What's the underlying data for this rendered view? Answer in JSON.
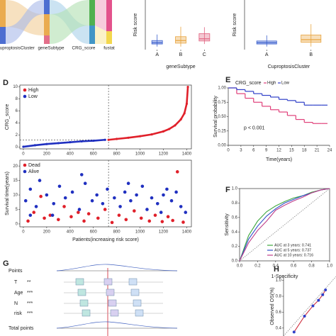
{
  "chart_data": [
    {
      "type": "sankey",
      "axes": [
        "CuproptosisCluster",
        "geneSubtype",
        "CRG_score",
        "fustat"
      ]
    },
    {
      "type": "box",
      "ylabel": "Risk score",
      "xlabel": "geneSubtype",
      "categories": [
        "A",
        "B",
        "C"
      ],
      "colors": [
        "#3a5fcd",
        "#e8a33d",
        "#e0607e"
      ],
      "ylim": [
        -0.5,
        11
      ],
      "stats": [
        {
          "min": 0.2,
          "q1": 0.8,
          "median": 1.1,
          "q3": 1.6,
          "max": 3.0
        },
        {
          "min": 0.2,
          "q1": 1.0,
          "median": 1.6,
          "q3": 2.5,
          "max": 4.8
        },
        {
          "min": 0.8,
          "q1": 1.5,
          "median": 2.0,
          "q3": 3.2,
          "max": 4.7
        }
      ]
    },
    {
      "type": "box",
      "ylabel": "Risk score",
      "xlabel": "CuproptosisCluster",
      "categories": [
        "A",
        "B"
      ],
      "colors": [
        "#3a5fcd",
        "#e8a33d"
      ],
      "ylim": [
        -0.5,
        11
      ],
      "stats": [
        {
          "min": 0.2,
          "q1": 0.8,
          "median": 1.1,
          "q3": 1.5,
          "max": 2.8
        },
        {
          "min": 0.2,
          "q1": 1.2,
          "median": 1.8,
          "q3": 2.9,
          "max": 5.4
        }
      ]
    },
    {
      "type": "scatter",
      "panel": "D",
      "ylabel": "CRG_score",
      "xlim": [
        -30,
        1440
      ],
      "ylim": [
        -0.3,
        10.3
      ],
      "xticks": [
        0,
        200,
        400,
        600,
        800,
        1000,
        1200,
        1400
      ],
      "yticks": [
        0,
        2,
        4,
        6,
        8,
        10
      ],
      "cutoff_x": 730,
      "cutoff_y": 1.2,
      "connected": true,
      "series": [
        {
          "name": "High",
          "color": "#e0202a",
          "x": [
            730,
            800,
            900,
            1000,
            1100,
            1200,
            1250,
            1300,
            1350,
            1380,
            1400,
            1410
          ],
          "values": [
            1.2,
            1.35,
            1.55,
            1.8,
            2.1,
            2.6,
            3.0,
            3.6,
            4.6,
            5.6,
            7.2,
            10.0
          ]
        },
        {
          "name": "Low",
          "color": "#2030c0",
          "x": [
            0,
            100,
            200,
            300,
            400,
            500,
            600,
            700
          ],
          "values": [
            0.05,
            0.3,
            0.5,
            0.65,
            0.8,
            0.95,
            1.05,
            1.2
          ]
        }
      ]
    },
    {
      "type": "scatter",
      "ylabel": "Survival time(years)",
      "xlabel": "Patients(increasing risk score)",
      "xlim": [
        -30,
        1440
      ],
      "ylim": [
        -1,
        22
      ],
      "xticks": [
        0,
        200,
        400,
        600,
        800,
        1000,
        1200,
        1400
      ],
      "yticks": [
        0,
        5,
        10,
        15,
        20
      ],
      "cutoff_x": 730,
      "series": [
        {
          "name": "Dead",
          "color": "#e0202a",
          "x": [
            40,
            90,
            150,
            180,
            230,
            300,
            350,
            410,
            470,
            520,
            560,
            640,
            700,
            760,
            820,
            880,
            950,
            1010,
            1080,
            1130,
            1190,
            1240,
            1280,
            1320,
            1370
          ],
          "values": [
            1,
            4,
            9.5,
            2,
            3,
            1.5,
            6,
            2.5,
            4,
            1,
            3.5,
            2,
            5,
            0.5,
            3,
            1.5,
            4.5,
            2,
            1,
            3,
            0.8,
            2.5,
            1.2,
            18,
            0.6
          ]
        },
        {
          "name": "Alive",
          "color": "#2030c0",
          "x": [
            20,
            60,
            110,
            140,
            200,
            260,
            310,
            360,
            420,
            480,
            530,
            590,
            630,
            680,
            720,
            780,
            830,
            870,
            920,
            970,
            1020,
            1060,
            1100,
            1150,
            1200,
            1230,
            1270,
            1310,
            1350,
            1390,
            500,
            250,
            900,
            1180,
            60
          ],
          "values": [
            8,
            12,
            6,
            15,
            10,
            7,
            13,
            9,
            11,
            5,
            14,
            8,
            10,
            7,
            12,
            9,
            6,
            11,
            8,
            10,
            13,
            5,
            9,
            7,
            10,
            12,
            8,
            11,
            6,
            4,
            17,
            3,
            14,
            4,
            3
          ]
        }
      ]
    },
    {
      "type": "km",
      "panel": "E",
      "legend_title": "CRG_score",
      "annotation": "p < 0.001",
      "ylabel": "Survival probability",
      "xlabel": "Time(years)",
      "xlim": [
        0,
        24
      ],
      "ylim": [
        0,
        1
      ],
      "xticks": [
        0,
        3,
        6,
        9,
        12,
        15,
        18,
        21,
        24
      ],
      "yticks": [
        {
          "value": 0,
          "label": "0.00"
        },
        0.25,
        {
          "value": 0.5,
          "label": "0.50"
        },
        0.75,
        {
          "value": 1,
          "label": "1.00"
        }
      ],
      "series": [
        {
          "name": "High",
          "color": "#e0407a",
          "x": [
            0,
            2,
            4,
            6,
            8,
            10,
            12,
            14,
            16,
            18,
            20,
            22
          ],
          "values": [
            1,
            0.9,
            0.82,
            0.75,
            0.68,
            0.62,
            0.58,
            0.52,
            0.45,
            0.4,
            0.38,
            0.38
          ]
        },
        {
          "name": "Low",
          "color": "#3040c8",
          "x": [
            0,
            2,
            4,
            6,
            8,
            10,
            12,
            14,
            16,
            18,
            20,
            22
          ],
          "values": [
            1,
            0.97,
            0.94,
            0.9,
            0.87,
            0.84,
            0.8,
            0.78,
            0.75,
            0.7,
            0.7,
            0.7
          ]
        }
      ]
    },
    {
      "type": "line",
      "panel": "F",
      "ylabel": "Sensitivity",
      "xlabel": "1-Specificity",
      "xlim": [
        0,
        1
      ],
      "ylim": [
        0,
        1
      ],
      "xticks": [
        {
          "value": 0,
          "label": "0.0"
        },
        0.2,
        0.4,
        0.6,
        0.8,
        {
          "value": 1,
          "label": "1.0"
        }
      ],
      "yticks": [
        {
          "value": 0,
          "label": "0.0"
        },
        0.2,
        0.4,
        0.6,
        0.8,
        {
          "value": 1,
          "label": "1.0"
        }
      ],
      "series": [
        {
          "name": "AUC at 3 years: 0.741",
          "color": "#3fa83f",
          "x": [
            0,
            0.1,
            0.2,
            0.3,
            0.4,
            0.5,
            0.6,
            0.7,
            0.8,
            0.9,
            1
          ],
          "values": [
            0,
            0.35,
            0.55,
            0.68,
            0.76,
            0.82,
            0.87,
            0.9,
            0.95,
            0.98,
            1
          ]
        },
        {
          "name": "AUC at 5 years: 0.737",
          "color": "#3050c8",
          "x": [
            0,
            0.1,
            0.2,
            0.3,
            0.4,
            0.5,
            0.6,
            0.7,
            0.8,
            0.9,
            1
          ],
          "values": [
            0,
            0.3,
            0.48,
            0.62,
            0.72,
            0.8,
            0.85,
            0.9,
            0.94,
            0.98,
            1
          ]
        },
        {
          "name": "AUC at 10 years: 0.716",
          "color": "#c0408a",
          "x": [
            0,
            0.1,
            0.2,
            0.3,
            0.4,
            0.5,
            0.6,
            0.7,
            0.8,
            0.9,
            1
          ],
          "values": [
            0,
            0.25,
            0.42,
            0.55,
            0.7,
            0.77,
            0.83,
            0.88,
            0.94,
            0.98,
            1
          ]
        }
      ]
    },
    {
      "type": "nomogram",
      "panel": "G",
      "rows": [
        {
          "label": "Points"
        },
        {
          "label": "T",
          "stars": "**"
        },
        {
          "label": "Age",
          "stars": "***"
        },
        {
          "label": "N",
          "stars": "***"
        },
        {
          "label": "risk",
          "stars": "***"
        },
        {
          "label": "Total points"
        }
      ]
    },
    {
      "type": "line",
      "panel": "H",
      "ylabel": "Observed OS(%)",
      "xlim": [
        0.3,
        1.05
      ],
      "ylim": [
        0.3,
        1.05
      ],
      "yticks": [
        0.4,
        0.6,
        0.8,
        {
          "value": 1,
          "label": "1.0"
        }
      ],
      "series": [
        {
          "color": "#d03040",
          "x": [
            0.45,
            0.6,
            0.72,
            0.8,
            0.86,
            0.9
          ],
          "values": [
            0.35,
            0.55,
            0.68,
            0.75,
            0.82,
            0.88
          ]
        }
      ]
    }
  ]
}
